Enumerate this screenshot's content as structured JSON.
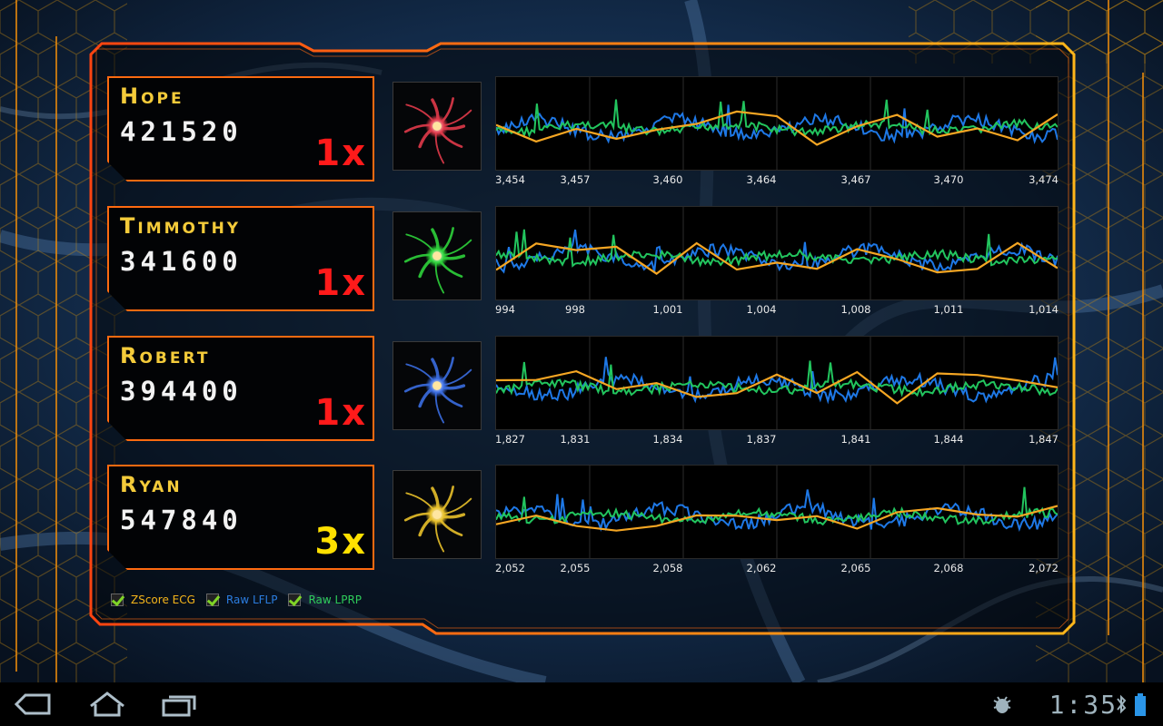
{
  "players": [
    {
      "name": "Hope",
      "score": "421520",
      "multiplier": "1x",
      "color": "#e03a4a",
      "multiplier_color": "#ff1a1a",
      "ticks": [
        "3,454",
        "3,457",
        "3,460",
        "3,464",
        "3,467",
        "3,470",
        "3,474"
      ]
    },
    {
      "name": "Timmothy",
      "score": "341600",
      "multiplier": "1x",
      "color": "#2ed13a",
      "multiplier_color": "#ff1a1a",
      "ticks": [
        "994",
        "998",
        "1,001",
        "1,004",
        "1,008",
        "1,011",
        "1,014"
      ]
    },
    {
      "name": "Robert",
      "score": "394400",
      "multiplier": "1x",
      "color": "#3a6ce0",
      "multiplier_color": "#ff1a1a",
      "ticks": [
        "1,827",
        "1,831",
        "1,834",
        "1,837",
        "1,841",
        "1,844",
        "1,847"
      ]
    },
    {
      "name": "Ryan",
      "score": "547840",
      "multiplier": "3x",
      "color": "#e8c02a",
      "multiplier_color": "#ffe000",
      "ticks": [
        "2,052",
        "2,055",
        "2,058",
        "2,062",
        "2,065",
        "2,068",
        "2,072"
      ]
    }
  ],
  "legend": [
    {
      "label": "ZScore ECG",
      "color": "#f4b41a",
      "checked": true
    },
    {
      "label": "Raw LFLP",
      "color": "#2b7de0",
      "checked": true
    },
    {
      "label": "Raw LPRP",
      "color": "#2ecc5a",
      "checked": true
    }
  ],
  "series_colors": {
    "zscore_ecg": "#f5a623",
    "raw_lflp": "#1e78e6",
    "raw_lprp": "#22c55e"
  },
  "statusbar": {
    "time": "1:35",
    "icons": [
      "back-icon",
      "home-icon",
      "recent-apps-icon",
      "debug-icon",
      "bluetooth-icon",
      "battery-icon"
    ]
  }
}
